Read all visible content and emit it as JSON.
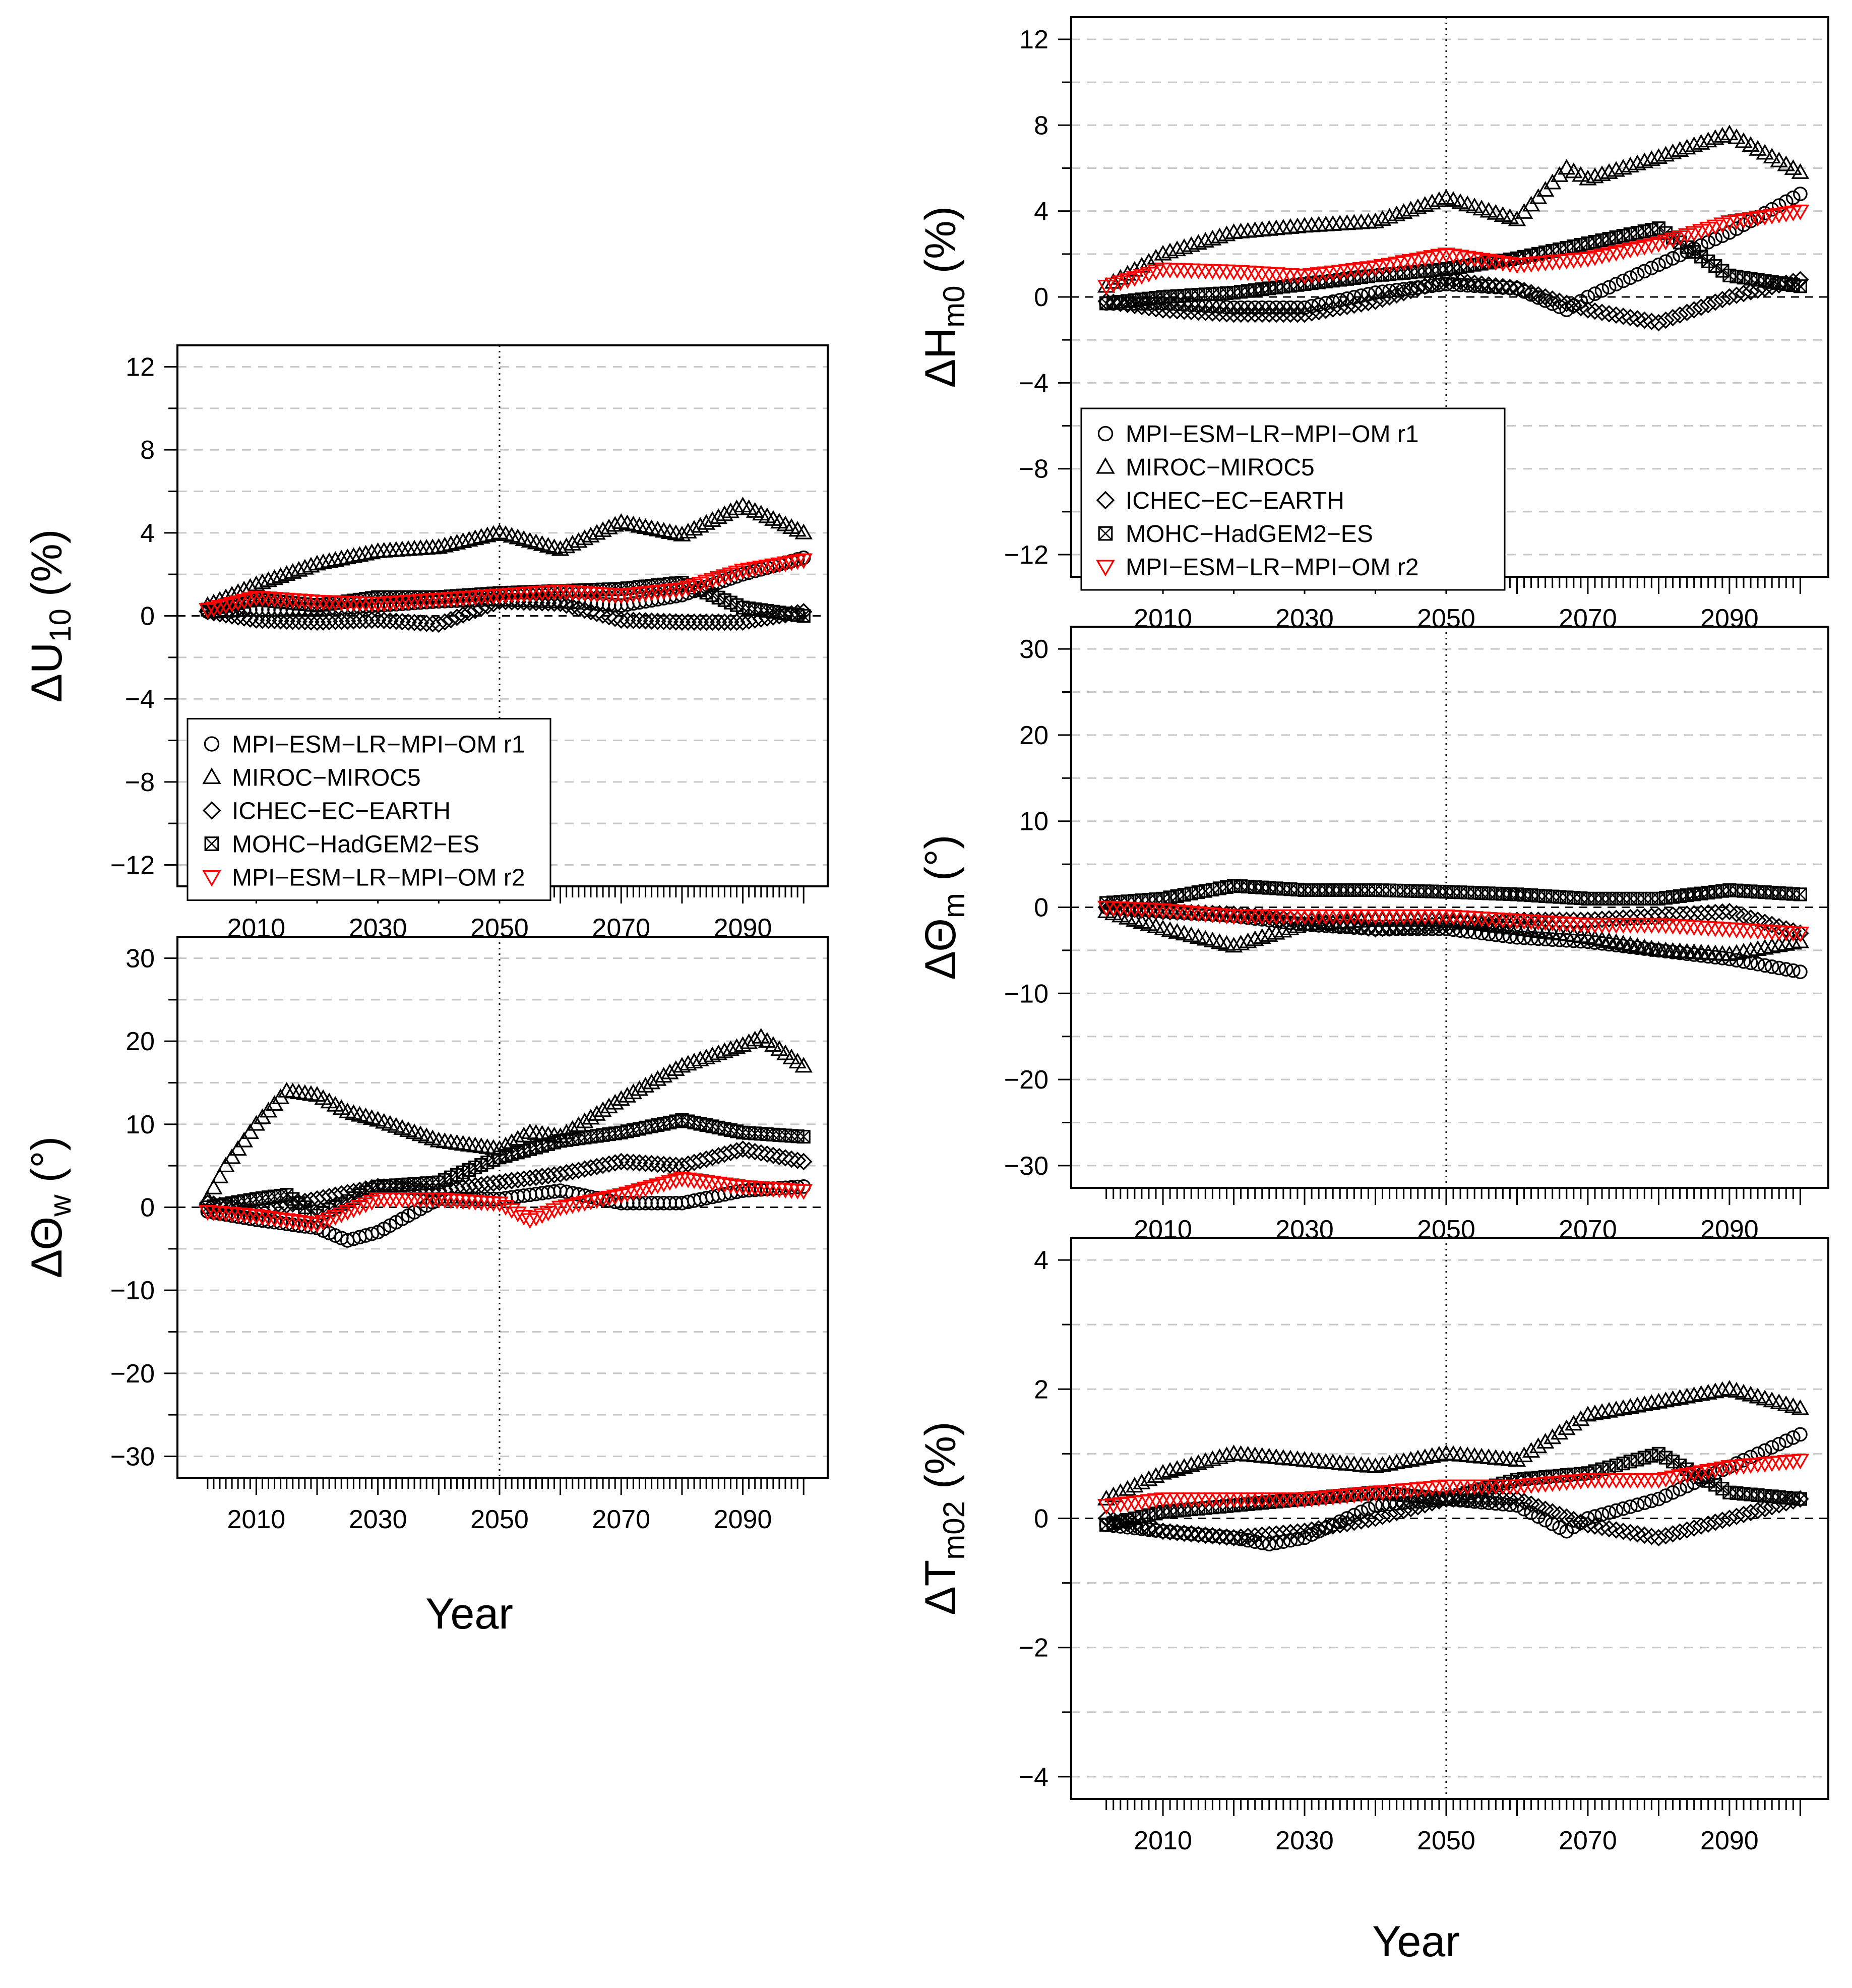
{
  "x_axis": {
    "tick_labels": [
      "2010",
      "2030",
      "2050",
      "2070",
      "2090"
    ],
    "label": "Year"
  },
  "legend_entries": [
    {
      "label": "MPI−ESM−LR−MPI−OM r1",
      "marker": "circle",
      "color": "#000000"
    },
    {
      "label": "MIROC−MIROC5",
      "marker": "triangle-up",
      "color": "#000000"
    },
    {
      "label": "ICHEC−EC−EARTH",
      "marker": "diamond",
      "color": "#000000"
    },
    {
      "label": "MOHC−HadGEM2−ES",
      "marker": "boxed-x",
      "color": "#000000"
    },
    {
      "label": "MPI−ESM−LR−MPI−OM r2",
      "marker": "triangle-down",
      "color": "#ff0000"
    }
  ],
  "chart_data": [
    {
      "type": "scatter",
      "ylabel_main": "ΔU",
      "ylabel_sub": "10",
      "ylabel_unit": "(%)",
      "xlim": [
        2001,
        2100
      ],
      "ylim": [
        -12,
        12
      ],
      "y_ticks": [
        -12,
        -8,
        -4,
        0,
        4,
        8,
        12
      ],
      "x_tick_labels": [
        "2010",
        "2030",
        "2050",
        "2070",
        "2090"
      ],
      "xlabel": "Year",
      "legend": "bottom-left",
      "grid": true,
      "series": [
        {
          "name": "MPI−ESM−LR−MPI−OM r1",
          "marker": "circle",
          "color": "#000000",
          "x": [
            2002,
            2010,
            2020,
            2030,
            2040,
            2050,
            2060,
            2070,
            2080,
            2090,
            2100
          ],
          "y": [
            0.2,
            0.3,
            0.3,
            0.5,
            0.7,
            0.8,
            0.7,
            0.5,
            1.0,
            2.0,
            2.8
          ]
        },
        {
          "name": "MIROC−MIROC5",
          "marker": "triangle-up",
          "color": "#000000",
          "x": [
            2002,
            2010,
            2020,
            2030,
            2040,
            2050,
            2060,
            2070,
            2080,
            2090,
            2100
          ],
          "y": [
            0.5,
            1.5,
            2.5,
            3.1,
            3.3,
            4.0,
            3.2,
            4.5,
            3.9,
            5.3,
            4.0
          ]
        },
        {
          "name": "ICHEC−EC−EARTH",
          "marker": "diamond",
          "color": "#000000",
          "x": [
            2002,
            2010,
            2020,
            2030,
            2040,
            2050,
            2060,
            2070,
            2080,
            2090,
            2100
          ],
          "y": [
            0.2,
            -0.2,
            -0.3,
            -0.2,
            -0.4,
            0.7,
            0.6,
            -0.2,
            -0.3,
            -0.3,
            0.2
          ]
        },
        {
          "name": "MOHC−HadGEM2−ES",
          "marker": "boxed-x",
          "color": "#000000",
          "x": [
            2002,
            2010,
            2020,
            2030,
            2040,
            2050,
            2060,
            2070,
            2080,
            2090,
            2100
          ],
          "y": [
            0.3,
            0.8,
            0.5,
            0.9,
            0.9,
            1.1,
            1.2,
            1.3,
            1.6,
            0.4,
            0.0
          ]
        },
        {
          "name": "MPI−ESM−LR−MPI−OM r2",
          "marker": "triangle-down",
          "color": "#ff0000",
          "x": [
            2002,
            2010,
            2020,
            2030,
            2040,
            2050,
            2060,
            2070,
            2080,
            2090,
            2100
          ],
          "y": [
            0.3,
            0.9,
            0.7,
            0.6,
            0.8,
            1.0,
            1.2,
            1.0,
            1.3,
            2.2,
            2.7
          ]
        }
      ]
    },
    {
      "type": "scatter",
      "ylabel_main": "ΔΘ",
      "ylabel_sub": "w",
      "ylabel_unit": "(°)",
      "xlim": [
        2001,
        2100
      ],
      "ylim": [
        -30,
        30
      ],
      "y_ticks": [
        -30,
        -20,
        -10,
        0,
        10,
        20,
        30
      ],
      "x_tick_labels": [
        "2010",
        "2030",
        "2050",
        "2070",
        "2090"
      ],
      "xlabel": "Year",
      "legend": "none",
      "grid": true,
      "series": [
        {
          "name": "MPI−ESM−LR−MPI−OM r1",
          "marker": "circle",
          "color": "#000000",
          "x": [
            2002,
            2010,
            2020,
            2025,
            2030,
            2040,
            2050,
            2060,
            2070,
            2080,
            2090,
            2100
          ],
          "y": [
            -0.5,
            -1.5,
            -2.5,
            -4.0,
            -3.0,
            1.0,
            1.0,
            2.0,
            0.5,
            0.5,
            2.0,
            2.5
          ]
        },
        {
          "name": "MIROC−MIROC5",
          "marker": "triangle-up",
          "color": "#000000",
          "x": [
            2002,
            2005,
            2010,
            2015,
            2020,
            2025,
            2030,
            2040,
            2050,
            2055,
            2060,
            2070,
            2080,
            2090,
            2093,
            2100
          ],
          "y": [
            1.0,
            5.0,
            10.0,
            14.0,
            13.5,
            11.5,
            10.5,
            8.0,
            7.0,
            9.0,
            8.5,
            13.0,
            17.0,
            19.5,
            20.5,
            17.0
          ]
        },
        {
          "name": "ICHEC−EC−EARTH",
          "marker": "diamond",
          "color": "#000000",
          "x": [
            2002,
            2010,
            2020,
            2030,
            2040,
            2050,
            2060,
            2070,
            2080,
            2090,
            2100
          ],
          "y": [
            0.5,
            -0.5,
            1.0,
            2.5,
            2.0,
            3.0,
            4.0,
            5.5,
            5.0,
            7.0,
            5.5
          ]
        },
        {
          "name": "MOHC−HadGEM2−ES",
          "marker": "boxed-x",
          "color": "#000000",
          "x": [
            2002,
            2010,
            2015,
            2020,
            2030,
            2040,
            2050,
            2060,
            2070,
            2080,
            2090,
            2100
          ],
          "y": [
            0.0,
            1.0,
            1.5,
            -1.0,
            2.5,
            3.0,
            6.0,
            8.0,
            9.0,
            10.5,
            9.0,
            8.5
          ]
        },
        {
          "name": "MPI−ESM−LR−MPI−OM r2",
          "marker": "triangle-down",
          "color": "#ff0000",
          "x": [
            2002,
            2010,
            2020,
            2030,
            2040,
            2050,
            2055,
            2060,
            2070,
            2080,
            2090,
            2100
          ],
          "y": [
            -0.5,
            -1.0,
            -2.0,
            1.0,
            1.0,
            0.5,
            -1.5,
            0.0,
            1.5,
            3.5,
            2.5,
            2.0
          ]
        }
      ]
    },
    {
      "type": "scatter",
      "ylabel_main": "ΔH",
      "ylabel_sub": "m0",
      "ylabel_unit": "(%)",
      "xlim": [
        2001,
        2100
      ],
      "ylim": [
        -12,
        12
      ],
      "y_ticks": [
        -12,
        -8,
        -4,
        0,
        4,
        8,
        12
      ],
      "x_tick_labels": [
        "2010",
        "2030",
        "2050",
        "2070",
        "2090"
      ],
      "xlabel": "Year",
      "legend": "bottom-left",
      "grid": true,
      "series": [
        {
          "name": "MPI−ESM−LR−MPI−OM r1",
          "marker": "circle",
          "color": "#000000",
          "x": [
            2002,
            2010,
            2020,
            2030,
            2040,
            2050,
            2060,
            2067,
            2070,
            2080,
            2090,
            2100
          ],
          "y": [
            -0.3,
            -0.3,
            -0.5,
            -0.5,
            0.2,
            0.6,
            0.4,
            -0.6,
            0.0,
            1.5,
            3.0,
            4.8
          ]
        },
        {
          "name": "MIROC−MIROC5",
          "marker": "triangle-up",
          "color": "#000000",
          "x": [
            2002,
            2010,
            2020,
            2030,
            2040,
            2050,
            2060,
            2067,
            2070,
            2080,
            2090,
            2100
          ],
          "y": [
            0.5,
            2.0,
            3.0,
            3.3,
            3.5,
            4.6,
            3.6,
            6.0,
            5.5,
            6.5,
            7.6,
            5.8
          ]
        },
        {
          "name": "ICHEC−EC−EARTH",
          "marker": "diamond",
          "color": "#000000",
          "x": [
            2002,
            2010,
            2020,
            2030,
            2040,
            2050,
            2060,
            2070,
            2080,
            2090,
            2100
          ],
          "y": [
            -0.2,
            -0.6,
            -0.8,
            -0.8,
            -0.2,
            0.8,
            0.4,
            -0.6,
            -1.2,
            0.0,
            0.8
          ]
        },
        {
          "name": "MOHC−HadGEM2−ES",
          "marker": "boxed-x",
          "color": "#000000",
          "x": [
            2002,
            2010,
            2020,
            2030,
            2040,
            2050,
            2060,
            2070,
            2080,
            2090,
            2100
          ],
          "y": [
            -0.3,
            0.0,
            0.2,
            0.6,
            1.0,
            1.3,
            1.8,
            2.5,
            3.2,
            1.0,
            0.5
          ]
        },
        {
          "name": "MPI−ESM−LR−MPI−OM r2",
          "marker": "triangle-down",
          "color": "#ff0000",
          "x": [
            2002,
            2010,
            2020,
            2030,
            2040,
            2050,
            2060,
            2070,
            2080,
            2090,
            2100
          ],
          "y": [
            0.5,
            1.3,
            1.2,
            1.0,
            1.4,
            2.0,
            1.5,
            1.8,
            2.5,
            3.5,
            4.0
          ]
        }
      ]
    },
    {
      "type": "scatter",
      "ylabel_main": "ΔΘ",
      "ylabel_sub": "m",
      "ylabel_unit": "(°)",
      "xlim": [
        2001,
        2100
      ],
      "ylim": [
        -30,
        30
      ],
      "y_ticks": [
        -30,
        -20,
        -10,
        0,
        10,
        20,
        30
      ],
      "x_tick_labels": [
        "2010",
        "2030",
        "2050",
        "2070",
        "2090"
      ],
      "xlabel": "Year",
      "legend": "none",
      "grid": true,
      "series": [
        {
          "name": "MPI−ESM−LR−MPI−OM r1",
          "marker": "circle",
          "color": "#000000",
          "x": [
            2002,
            2010,
            2020,
            2030,
            2040,
            2050,
            2060,
            2070,
            2080,
            2090,
            2100
          ],
          "y": [
            0.0,
            -0.5,
            -1.0,
            -2.0,
            -2.5,
            -2.5,
            -3.5,
            -4.0,
            -5.0,
            -6.0,
            -7.5
          ]
        },
        {
          "name": "MIROC−MIROC5",
          "marker": "triangle-up",
          "color": "#000000",
          "x": [
            2002,
            2010,
            2020,
            2030,
            2040,
            2050,
            2060,
            2070,
            2080,
            2090,
            2100
          ],
          "y": [
            -0.5,
            -2.5,
            -4.5,
            -2.0,
            -1.5,
            -1.5,
            -2.5,
            -3.5,
            -5.0,
            -5.5,
            -4.0
          ]
        },
        {
          "name": "ICHEC−EC−EARTH",
          "marker": "diamond",
          "color": "#000000",
          "x": [
            2002,
            2010,
            2020,
            2030,
            2040,
            2050,
            2060,
            2070,
            2080,
            2090,
            2100
          ],
          "y": [
            0.0,
            -0.5,
            -0.8,
            -1.5,
            -2.5,
            -2.0,
            -1.5,
            -1.5,
            -1.0,
            -0.5,
            -3.0
          ]
        },
        {
          "name": "MOHC−HadGEM2−ES",
          "marker": "boxed-x",
          "color": "#000000",
          "x": [
            2002,
            2010,
            2020,
            2030,
            2040,
            2050,
            2060,
            2070,
            2080,
            2090,
            2100
          ],
          "y": [
            0.5,
            1.0,
            2.5,
            2.0,
            2.0,
            1.8,
            1.5,
            1.0,
            1.0,
            2.0,
            1.5
          ]
        },
        {
          "name": "MPI−ESM−LR−MPI−OM r2",
          "marker": "triangle-down",
          "color": "#ff0000",
          "x": [
            2002,
            2010,
            2020,
            2030,
            2040,
            2050,
            2060,
            2070,
            2080,
            2090,
            2100
          ],
          "y": [
            0.0,
            -0.3,
            -1.0,
            -1.0,
            -1.0,
            -1.0,
            -1.5,
            -2.0,
            -2.0,
            -2.5,
            -3.0
          ]
        }
      ]
    },
    {
      "type": "scatter",
      "ylabel_main": "ΔT",
      "ylabel_sub": "m02",
      "ylabel_unit": "(%)",
      "xlim": [
        2001,
        2100
      ],
      "ylim": [
        -4,
        4
      ],
      "y_ticks": [
        -4,
        -2,
        0,
        2,
        4
      ],
      "x_tick_labels": [
        "2010",
        "2030",
        "2050",
        "2070",
        "2090"
      ],
      "xlabel": "Year",
      "legend": "none",
      "grid": true,
      "series": [
        {
          "name": "MPI−ESM−LR−MPI−OM r1",
          "marker": "circle",
          "color": "#000000",
          "x": [
            2002,
            2010,
            2020,
            2025,
            2030,
            2040,
            2050,
            2060,
            2067,
            2070,
            2080,
            2090,
            2100
          ],
          "y": [
            -0.1,
            -0.2,
            -0.3,
            -0.4,
            -0.3,
            0.2,
            0.3,
            0.2,
            -0.2,
            0.0,
            0.3,
            0.8,
            1.3
          ]
        },
        {
          "name": "MIROC−MIROC5",
          "marker": "triangle-up",
          "color": "#000000",
          "x": [
            2002,
            2010,
            2020,
            2030,
            2040,
            2050,
            2060,
            2070,
            2080,
            2090,
            2100
          ],
          "y": [
            0.3,
            0.7,
            1.0,
            0.9,
            0.8,
            1.0,
            0.9,
            1.6,
            1.8,
            2.0,
            1.7
          ]
        },
        {
          "name": "ICHEC−EC−EARTH",
          "marker": "diamond",
          "color": "#000000",
          "x": [
            2002,
            2010,
            2020,
            2030,
            2040,
            2050,
            2060,
            2070,
            2080,
            2090,
            2100
          ],
          "y": [
            0.0,
            -0.2,
            -0.3,
            -0.2,
            0.0,
            0.3,
            0.3,
            -0.1,
            -0.3,
            0.0,
            0.3
          ]
        },
        {
          "name": "MOHC−HadGEM2−ES",
          "marker": "boxed-x",
          "color": "#000000",
          "x": [
            2002,
            2010,
            2020,
            2030,
            2040,
            2050,
            2060,
            2070,
            2080,
            2090,
            2100
          ],
          "y": [
            -0.1,
            0.1,
            0.2,
            0.3,
            0.4,
            0.3,
            0.6,
            0.7,
            1.0,
            0.4,
            0.3
          ]
        },
        {
          "name": "MPI−ESM−LR−MPI−OM r2",
          "marker": "triangle-down",
          "color": "#ff0000",
          "x": [
            2002,
            2010,
            2020,
            2030,
            2040,
            2050,
            2060,
            2070,
            2080,
            2090,
            2100
          ],
          "y": [
            0.2,
            0.3,
            0.3,
            0.3,
            0.4,
            0.5,
            0.5,
            0.6,
            0.6,
            0.8,
            0.9
          ]
        }
      ]
    }
  ]
}
